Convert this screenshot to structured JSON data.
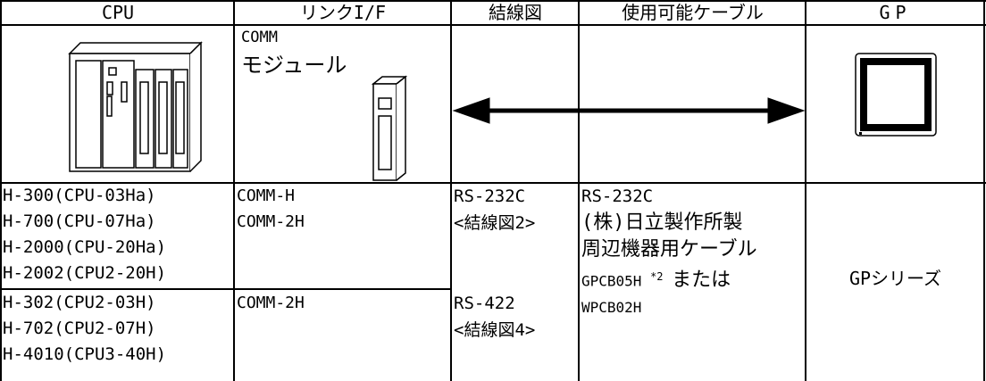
{
  "header": {
    "cells": [
      "CPU",
      "リンクI/F",
      "結線図",
      "使用可能ケーブル",
      "GP"
    ]
  },
  "image_row": {
    "link_label": [
      "COMM",
      "モジュール"
    ]
  },
  "rows": [
    {
      "cpu": [
        "H-300(CPU-03Ha)",
        "H-700(CPU-07Ha)",
        "H-2000(CPU-20Ha)",
        "H-2002(CPU2-20H)"
      ],
      "link": [
        "COMM-H",
        "COMM-2H"
      ],
      "wiring": [
        "RS-232C",
        "<結線図2>"
      ]
    },
    {
      "cpu": [
        "H-302(CPU2-03H)",
        "H-702(CPU2-07H)",
        "H-4010(CPU3-40H)"
      ],
      "link": [
        "COMM-2H"
      ],
      "wiring": [
        "RS-422",
        "<結線図4>"
      ]
    }
  ],
  "cable": {
    "lines": [
      "RS-232C",
      "(株)日立製作所製",
      "周辺機器用ケーブル"
    ],
    "part1": "GPCB05H",
    "note": "*2",
    "conj": "または",
    "part2": "WPCB02H"
  },
  "gp": "GPシリーズ"
}
